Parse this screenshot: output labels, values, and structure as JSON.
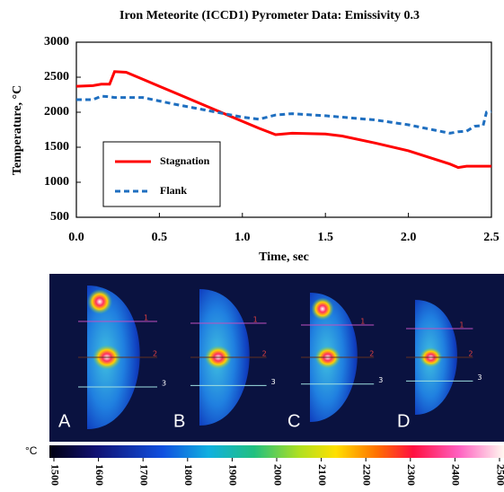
{
  "chart_data": {
    "type": "line",
    "title": "Iron Meteorite (ICCD1)  Pyrometer Data:  Emissivity 0.3",
    "x_label": "Time, sec",
    "y_label": "Temperature, °C",
    "x": [
      0,
      0.1,
      0.15,
      0.2,
      0.23,
      0.3,
      0.4,
      0.5,
      0.6,
      0.8,
      1.0,
      1.1,
      1.2,
      1.3,
      1.5,
      1.6,
      1.8,
      2.0,
      2.25,
      2.3,
      2.35,
      2.4,
      2.45,
      2.47,
      2.5
    ],
    "series": [
      {
        "name": "Stagnation",
        "color": "#ff0000",
        "dash": false,
        "values": [
          2370,
          2380,
          2400,
          2400,
          2580,
          2570,
          2470,
          2370,
          2270,
          2070,
          1870,
          1770,
          1680,
          1700,
          1690,
          1660,
          1560,
          1450,
          1260,
          1210,
          1230,
          1230,
          1230,
          1230,
          1230
        ]
      },
      {
        "name": "Flank",
        "color": "#1f6fc0",
        "dash": true,
        "values": [
          2180,
          2180,
          2230,
          2220,
          2210,
          2210,
          2210,
          2160,
          2110,
          2020,
          1930,
          1900,
          1960,
          1980,
          1950,
          1930,
          1890,
          1820,
          1700,
          1720,
          1730,
          1800,
          1810,
          2000,
          2010
        ]
      }
    ],
    "xlim": [
      0,
      2.5
    ],
    "xticks": [
      {
        "value": 0,
        "label": "0.0"
      },
      0.5,
      {
        "value": 1,
        "label": "1.0"
      },
      1.5,
      {
        "value": 2,
        "label": "2.0"
      },
      2.5
    ],
    "ylim": [
      500,
      3000
    ],
    "yticks": [
      500,
      1000,
      1500,
      2000,
      2500,
      3000
    ],
    "grid": false
  },
  "thermal_images": {
    "panels": [
      "A",
      "B",
      "C",
      "D"
    ],
    "profile_labels": [
      "1",
      "2",
      "3"
    ],
    "colorbar": {
      "unit": "°C",
      "ticks": [
        1500,
        1600,
        1700,
        1800,
        1900,
        2000,
        2100,
        2200,
        2300,
        2400,
        2500
      ]
    }
  }
}
